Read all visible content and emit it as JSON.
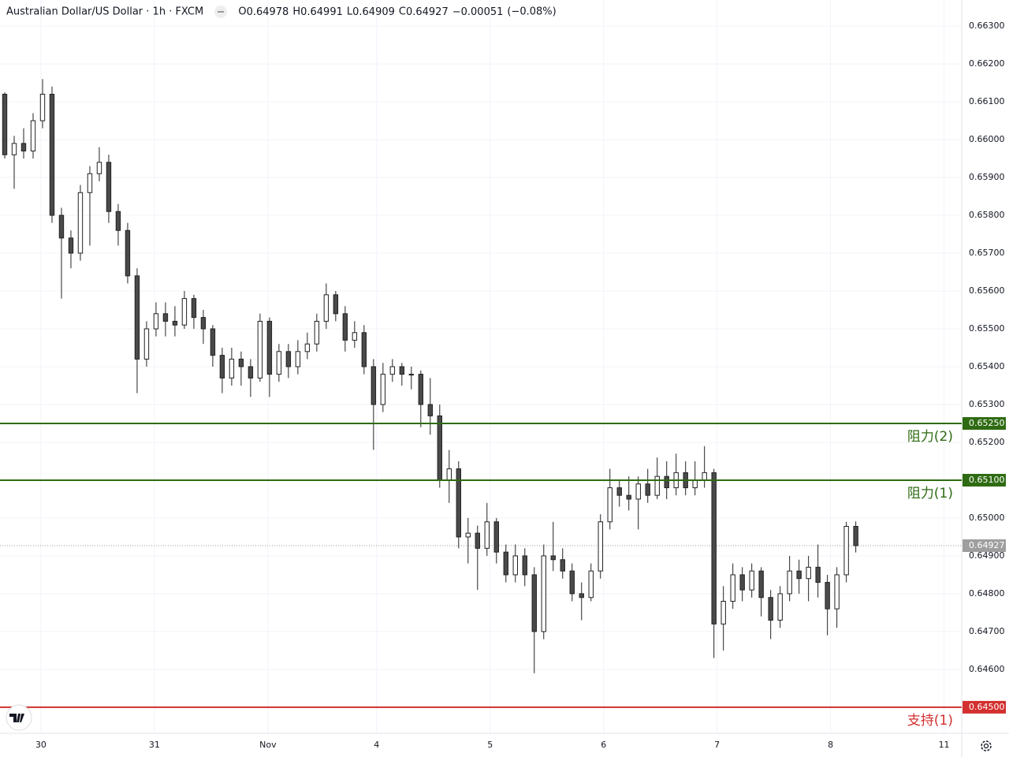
{
  "chart_data": {
    "type": "candlestick",
    "title": "Australian Dollar/US Dollar · 1h · FXCM",
    "header": [
      {
        "label": "O",
        "value": 0.64978
      },
      {
        "label": "H",
        "value": 0.64991
      },
      {
        "label": "L",
        "value": 0.64909
      },
      {
        "label": "C",
        "value": 0.64927
      }
    ],
    "change": {
      "value": -0.00051,
      "label": "−0.00051"
    },
    "change_percent": {
      "value": -0.08,
      "label": "(−0.08%)"
    },
    "up_color": "#ffffff",
    "down_color": "#4a4a4a",
    "border_color": "#222222",
    "ohlc": [
      [
        0.6612,
        0.66125,
        0.6595,
        0.6596
      ],
      [
        0.6596,
        0.6601,
        0.6587,
        0.6599
      ],
      [
        0.6599,
        0.6603,
        0.6595,
        0.6597
      ],
      [
        0.6597,
        0.6607,
        0.6595,
        0.6605
      ],
      [
        0.6605,
        0.6616,
        0.6603,
        0.6612
      ],
      [
        0.6612,
        0.6614,
        0.6578,
        0.658
      ],
      [
        0.658,
        0.6582,
        0.6558,
        0.6574
      ],
      [
        0.6574,
        0.6576,
        0.6566,
        0.657
      ],
      [
        0.657,
        0.6588,
        0.6568,
        0.6586
      ],
      [
        0.6586,
        0.6593,
        0.6572,
        0.6591
      ],
      [
        0.6591,
        0.6598,
        0.6589,
        0.6594
      ],
      [
        0.6594,
        0.6596,
        0.6578,
        0.6581
      ],
      [
        0.6581,
        0.6583,
        0.6572,
        0.6576
      ],
      [
        0.6576,
        0.6578,
        0.6562,
        0.6564
      ],
      [
        0.6564,
        0.6566,
        0.6533,
        0.6542
      ],
      [
        0.6542,
        0.6552,
        0.654,
        0.655
      ],
      [
        0.655,
        0.6557,
        0.6548,
        0.6554
      ],
      [
        0.6554,
        0.6557,
        0.6548,
        0.6552
      ],
      [
        0.6552,
        0.6556,
        0.6548,
        0.6551
      ],
      [
        0.6551,
        0.656,
        0.655,
        0.6558
      ],
      [
        0.6558,
        0.6559,
        0.655,
        0.6553
      ],
      [
        0.6553,
        0.6555,
        0.6546,
        0.655
      ],
      [
        0.655,
        0.6551,
        0.654,
        0.6543
      ],
      [
        0.6543,
        0.6545,
        0.6533,
        0.6537
      ],
      [
        0.6537,
        0.6545,
        0.6535,
        0.6542
      ],
      [
        0.6542,
        0.6544,
        0.6535,
        0.654
      ],
      [
        0.654,
        0.6542,
        0.6532,
        0.6537
      ],
      [
        0.6537,
        0.6554,
        0.6536,
        0.6552
      ],
      [
        0.6552,
        0.6553,
        0.6532,
        0.6538
      ],
      [
        0.6538,
        0.6546,
        0.6536,
        0.6544
      ],
      [
        0.6544,
        0.6546,
        0.6537,
        0.654
      ],
      [
        0.654,
        0.6547,
        0.6538,
        0.6544
      ],
      [
        0.6544,
        0.6549,
        0.6542,
        0.6546
      ],
      [
        0.6546,
        0.6554,
        0.6544,
        0.6552
      ],
      [
        0.6552,
        0.6562,
        0.655,
        0.6559
      ],
      [
        0.6559,
        0.656,
        0.6552,
        0.6554
      ],
      [
        0.6554,
        0.6556,
        0.6544,
        0.6547
      ],
      [
        0.6547,
        0.6552,
        0.6545,
        0.6549
      ],
      [
        0.6549,
        0.6551,
        0.6538,
        0.654
      ],
      [
        0.654,
        0.6542,
        0.6518,
        0.653
      ],
      [
        0.653,
        0.6541,
        0.6528,
        0.6538
      ],
      [
        0.6538,
        0.6542,
        0.6536,
        0.654
      ],
      [
        0.654,
        0.6541,
        0.6535,
        0.6538
      ],
      [
        0.6538,
        0.654,
        0.6534,
        0.6538
      ],
      [
        0.6538,
        0.6539,
        0.6524,
        0.653
      ],
      [
        0.653,
        0.6537,
        0.6522,
        0.6527
      ],
      [
        0.6527,
        0.653,
        0.6508,
        0.651
      ],
      [
        0.651,
        0.6518,
        0.6504,
        0.6513
      ],
      [
        0.6513,
        0.6515,
        0.6492,
        0.6495
      ],
      [
        0.6495,
        0.65,
        0.6488,
        0.6496
      ],
      [
        0.6496,
        0.6498,
        0.6481,
        0.6492
      ],
      [
        0.6492,
        0.6504,
        0.649,
        0.6499
      ],
      [
        0.6499,
        0.65,
        0.6488,
        0.6491
      ],
      [
        0.6491,
        0.6493,
        0.6483,
        0.6485
      ],
      [
        0.6485,
        0.6493,
        0.6483,
        0.649
      ],
      [
        0.649,
        0.6492,
        0.6482,
        0.6485
      ],
      [
        0.6485,
        0.6487,
        0.6459,
        0.647
      ],
      [
        0.647,
        0.6493,
        0.6468,
        0.649
      ],
      [
        0.649,
        0.6499,
        0.6486,
        0.6489
      ],
      [
        0.6489,
        0.6492,
        0.6484,
        0.6486
      ],
      [
        0.6486,
        0.6488,
        0.6478,
        0.648
      ],
      [
        0.648,
        0.6483,
        0.6473,
        0.6479
      ],
      [
        0.6479,
        0.6488,
        0.6478,
        0.6486
      ],
      [
        0.6486,
        0.6501,
        0.6484,
        0.6499
      ],
      [
        0.6499,
        0.6513,
        0.6497,
        0.6508
      ],
      [
        0.6508,
        0.651,
        0.6503,
        0.6506
      ],
      [
        0.6506,
        0.6511,
        0.6502,
        0.6505
      ],
      [
        0.6505,
        0.6511,
        0.6497,
        0.6509
      ],
      [
        0.6509,
        0.6513,
        0.6504,
        0.6506
      ],
      [
        0.6506,
        0.6516,
        0.6505,
        0.6511
      ],
      [
        0.6511,
        0.6515,
        0.6505,
        0.6508
      ],
      [
        0.6508,
        0.6517,
        0.6506,
        0.6512
      ],
      [
        0.6512,
        0.6515,
        0.6506,
        0.6508
      ],
      [
        0.6508,
        0.6515,
        0.6506,
        0.651
      ],
      [
        0.651,
        0.6519,
        0.6508,
        0.6512
      ],
      [
        0.6512,
        0.6513,
        0.6463,
        0.6472
      ],
      [
        0.6472,
        0.6482,
        0.6465,
        0.6478
      ],
      [
        0.6478,
        0.6488,
        0.6476,
        0.6485
      ],
      [
        0.6485,
        0.6487,
        0.6478,
        0.6481
      ],
      [
        0.6481,
        0.6488,
        0.6479,
        0.6486
      ],
      [
        0.6486,
        0.6487,
        0.6474,
        0.6479
      ],
      [
        0.6479,
        0.6481,
        0.6468,
        0.6473
      ],
      [
        0.6473,
        0.6482,
        0.6471,
        0.648
      ],
      [
        0.648,
        0.649,
        0.6478,
        0.6486
      ],
      [
        0.6486,
        0.6489,
        0.648,
        0.6484
      ],
      [
        0.6484,
        0.649,
        0.6478,
        0.6487
      ],
      [
        0.6487,
        0.6493,
        0.6479,
        0.6483
      ],
      [
        0.6483,
        0.6485,
        0.6469,
        0.6476
      ],
      [
        0.6476,
        0.6487,
        0.6471,
        0.6485
      ],
      [
        0.6485,
        0.6499,
        0.6483,
        0.64978
      ],
      [
        0.64978,
        0.64991,
        0.64909,
        0.64927
      ]
    ],
    "xlim": [
      -0.5,
      101.2
    ],
    "xticks": [
      {
        "value": 3.83,
        "label": "30"
      },
      {
        "value": 15.83,
        "label": "31"
      },
      {
        "value": 27.83,
        "label": "Nov"
      },
      {
        "value": 39.33,
        "label": "4"
      },
      {
        "value": 51.33,
        "label": "5"
      },
      {
        "value": 63.33,
        "label": "6"
      },
      {
        "value": 75.33,
        "label": "7"
      },
      {
        "value": 87.33,
        "label": "8"
      },
      {
        "value": 99.33,
        "label": "11"
      }
    ],
    "ylim": [
      0.64431,
      0.66369
    ],
    "yticks": [
      {
        "value": 0.663,
        "label": "0.66300"
      },
      {
        "value": 0.662,
        "label": "0.66200"
      },
      {
        "value": 0.661,
        "label": "0.66100"
      },
      {
        "value": 0.66,
        "label": "0.66000"
      },
      {
        "value": 0.659,
        "label": "0.65900"
      },
      {
        "value": 0.658,
        "label": "0.65800"
      },
      {
        "value": 0.657,
        "label": "0.65700"
      },
      {
        "value": 0.656,
        "label": "0.65600"
      },
      {
        "value": 0.655,
        "label": "0.65500"
      },
      {
        "value": 0.654,
        "label": "0.65400"
      },
      {
        "value": 0.653,
        "label": "0.65300"
      },
      {
        "value": 0.652,
        "label": "0.65200"
      },
      {
        "value": 0.65,
        "label": "0.65000"
      },
      {
        "value": 0.649,
        "label": "0.64900"
      },
      {
        "value": 0.648,
        "label": "0.64800"
      },
      {
        "value": 0.647,
        "label": "0.64700"
      },
      {
        "value": 0.646,
        "label": "0.64600"
      }
    ],
    "grid": true,
    "levels": [
      {
        "value": 0.6525,
        "label": "0.65250",
        "name": "阻力(2)",
        "color": "#2e6b12"
      },
      {
        "value": 0.651,
        "label": "0.65100",
        "name": "阻力(1)",
        "color": "#2e6b12"
      },
      {
        "value": 0.645,
        "label": "0.64500",
        "name": "支持(1)",
        "color": "#d32f2f"
      }
    ],
    "last_price": {
      "value": 0.64927,
      "label": "0.64927",
      "color": "#9e9e9e"
    }
  }
}
